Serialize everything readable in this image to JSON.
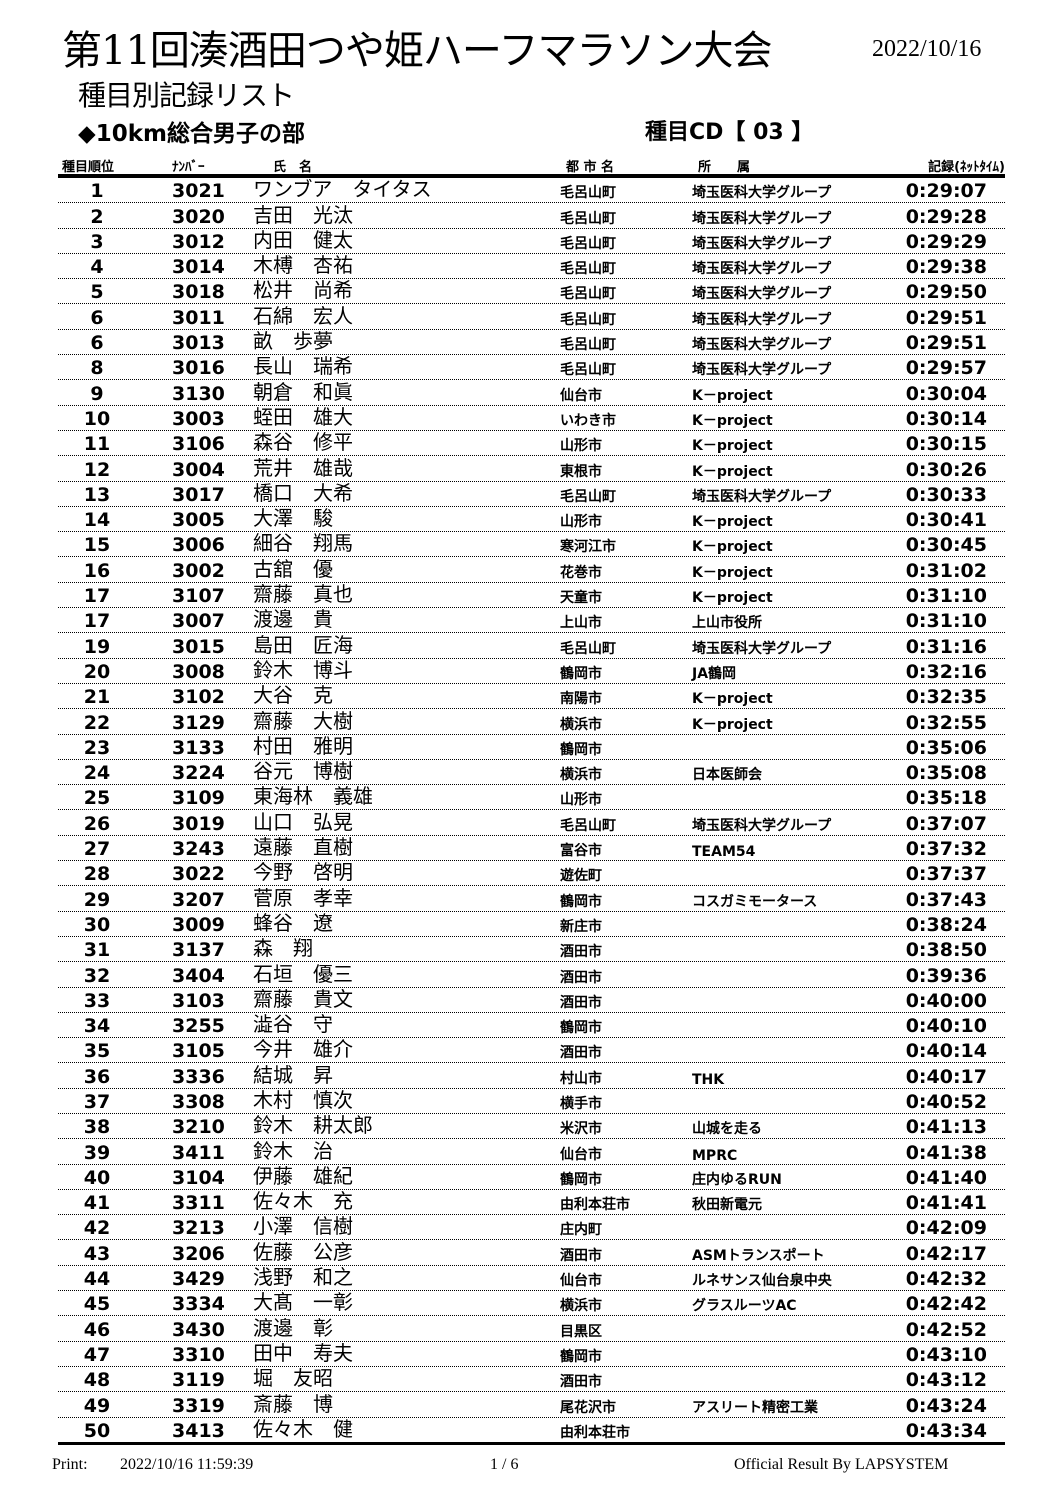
{
  "header": {
    "title": "第11回湊酒田つや姫ハーフマラソン大会",
    "date": "2022/10/16",
    "subtitle": "種目別記録リスト",
    "section": "◆10km総合男子の部",
    "event_code": "種目CD【 03 】"
  },
  "columns": {
    "rank": "種目順位",
    "number": "ﾅﾝﾊﾞｰ",
    "name": "氏　名",
    "city": "都 市 名",
    "affiliation": "所　　属",
    "time": "記録(ﾈｯﾄﾀｲﾑ)"
  },
  "rows": [
    {
      "rank": "1",
      "number": "3021",
      "name": "ワンブア　タイタス",
      "city": "毛呂山町",
      "affiliation": "埼玉医科大学グループ",
      "time": "0:29:07"
    },
    {
      "rank": "2",
      "number": "3020",
      "name": "吉田　光汰",
      "city": "毛呂山町",
      "affiliation": "埼玉医科大学グループ",
      "time": "0:29:28"
    },
    {
      "rank": "3",
      "number": "3012",
      "name": "内田　健太",
      "city": "毛呂山町",
      "affiliation": "埼玉医科大学グループ",
      "time": "0:29:29"
    },
    {
      "rank": "4",
      "number": "3014",
      "name": "木榑　杏祐",
      "city": "毛呂山町",
      "affiliation": "埼玉医科大学グループ",
      "time": "0:29:38"
    },
    {
      "rank": "5",
      "number": "3018",
      "name": "松井　尚希",
      "city": "毛呂山町",
      "affiliation": "埼玉医科大学グループ",
      "time": "0:29:50"
    },
    {
      "rank": "6",
      "number": "3011",
      "name": "石綿　宏人",
      "city": "毛呂山町",
      "affiliation": "埼玉医科大学グループ",
      "time": "0:29:51"
    },
    {
      "rank": "6",
      "number": "3013",
      "name": "畝　歩夢",
      "city": "毛呂山町",
      "affiliation": "埼玉医科大学グループ",
      "time": "0:29:51"
    },
    {
      "rank": "8",
      "number": "3016",
      "name": "長山　瑞希",
      "city": "毛呂山町",
      "affiliation": "埼玉医科大学グループ",
      "time": "0:29:57"
    },
    {
      "rank": "9",
      "number": "3130",
      "name": "朝倉　和眞",
      "city": "仙台市",
      "affiliation": "K－project",
      "time": "0:30:04"
    },
    {
      "rank": "10",
      "number": "3003",
      "name": "蛭田　雄大",
      "city": "いわき市",
      "affiliation": "K－project",
      "time": "0:30:14"
    },
    {
      "rank": "11",
      "number": "3106",
      "name": "森谷　修平",
      "city": "山形市",
      "affiliation": "K－project",
      "time": "0:30:15"
    },
    {
      "rank": "12",
      "number": "3004",
      "name": "荒井　雄哉",
      "city": "東根市",
      "affiliation": "K－project",
      "time": "0:30:26"
    },
    {
      "rank": "13",
      "number": "3017",
      "name": "橋口　大希",
      "city": "毛呂山町",
      "affiliation": "埼玉医科大学グループ",
      "time": "0:30:33"
    },
    {
      "rank": "14",
      "number": "3005",
      "name": "大澤　駿",
      "city": "山形市",
      "affiliation": "K－project",
      "time": "0:30:41"
    },
    {
      "rank": "15",
      "number": "3006",
      "name": "細谷　翔馬",
      "city": "寒河江市",
      "affiliation": "K－project",
      "time": "0:30:45"
    },
    {
      "rank": "16",
      "number": "3002",
      "name": "古舘　優",
      "city": "花巻市",
      "affiliation": "K－project",
      "time": "0:31:02"
    },
    {
      "rank": "17",
      "number": "3107",
      "name": "齋藤　真也",
      "city": "天童市",
      "affiliation": "K－project",
      "time": "0:31:10"
    },
    {
      "rank": "17",
      "number": "3007",
      "name": "渡邊　貴",
      "city": "上山市",
      "affiliation": "上山市役所",
      "time": "0:31:10"
    },
    {
      "rank": "19",
      "number": "3015",
      "name": "島田　匠海",
      "city": "毛呂山町",
      "affiliation": "埼玉医科大学グループ",
      "time": "0:31:16"
    },
    {
      "rank": "20",
      "number": "3008",
      "name": "鈴木　博斗",
      "city": "鶴岡市",
      "affiliation": "JA鶴岡",
      "time": "0:32:16"
    },
    {
      "rank": "21",
      "number": "3102",
      "name": "大谷　克",
      "city": "南陽市",
      "affiliation": "K－project",
      "time": "0:32:35"
    },
    {
      "rank": "22",
      "number": "3129",
      "name": "齋藤　大樹",
      "city": "横浜市",
      "affiliation": "K－project",
      "time": "0:32:55"
    },
    {
      "rank": "23",
      "number": "3133",
      "name": "村田　雅明",
      "city": "鶴岡市",
      "affiliation": "",
      "time": "0:35:06"
    },
    {
      "rank": "24",
      "number": "3224",
      "name": "谷元　博樹",
      "city": "横浜市",
      "affiliation": "日本医師会",
      "time": "0:35:08"
    },
    {
      "rank": "25",
      "number": "3109",
      "name": "東海林　義雄",
      "city": "山形市",
      "affiliation": "",
      "time": "0:35:18"
    },
    {
      "rank": "26",
      "number": "3019",
      "name": "山口　弘晃",
      "city": "毛呂山町",
      "affiliation": "埼玉医科大学グループ",
      "time": "0:37:07"
    },
    {
      "rank": "27",
      "number": "3243",
      "name": "遠藤　直樹",
      "city": "富谷市",
      "affiliation": "TEAM54",
      "time": "0:37:32"
    },
    {
      "rank": "28",
      "number": "3022",
      "name": "今野　啓明",
      "city": "遊佐町",
      "affiliation": "",
      "time": "0:37:37"
    },
    {
      "rank": "29",
      "number": "3207",
      "name": "菅原　孝幸",
      "city": "鶴岡市",
      "affiliation": "コスガミモータース",
      "time": "0:37:43"
    },
    {
      "rank": "30",
      "number": "3009",
      "name": "蜂谷　遼",
      "city": "新庄市",
      "affiliation": "",
      "time": "0:38:24"
    },
    {
      "rank": "31",
      "number": "3137",
      "name": "森　翔",
      "city": "酒田市",
      "affiliation": "",
      "time": "0:38:50"
    },
    {
      "rank": "32",
      "number": "3404",
      "name": "石垣　優三",
      "city": "酒田市",
      "affiliation": "",
      "time": "0:39:36"
    },
    {
      "rank": "33",
      "number": "3103",
      "name": "齋藤　貴文",
      "city": "酒田市",
      "affiliation": "",
      "time": "0:40:00"
    },
    {
      "rank": "34",
      "number": "3255",
      "name": "澁谷　守",
      "city": "鶴岡市",
      "affiliation": "",
      "time": "0:40:10"
    },
    {
      "rank": "35",
      "number": "3105",
      "name": "今井　雄介",
      "city": "酒田市",
      "affiliation": "",
      "time": "0:40:14"
    },
    {
      "rank": "36",
      "number": "3336",
      "name": "結城　昇",
      "city": "村山市",
      "affiliation": "THK",
      "time": "0:40:17"
    },
    {
      "rank": "37",
      "number": "3308",
      "name": "木村　慎次",
      "city": "横手市",
      "affiliation": "",
      "time": "0:40:52"
    },
    {
      "rank": "38",
      "number": "3210",
      "name": "鈴木　耕太郎",
      "city": "米沢市",
      "affiliation": "山城を走る",
      "time": "0:41:13"
    },
    {
      "rank": "39",
      "number": "3411",
      "name": "鈴木　治",
      "city": "仙台市",
      "affiliation": "MPRC",
      "time": "0:41:38"
    },
    {
      "rank": "40",
      "number": "3104",
      "name": "伊藤　雄紀",
      "city": "鶴岡市",
      "affiliation": "庄内ゆるRUN",
      "time": "0:41:40"
    },
    {
      "rank": "41",
      "number": "3311",
      "name": "佐々木　充",
      "city": "由利本荘市",
      "affiliation": "秋田新電元",
      "time": "0:41:41"
    },
    {
      "rank": "42",
      "number": "3213",
      "name": "小澤　信樹",
      "city": "庄内町",
      "affiliation": "",
      "time": "0:42:09"
    },
    {
      "rank": "43",
      "number": "3206",
      "name": "佐藤　公彦",
      "city": "酒田市",
      "affiliation": "ASMトランスポート",
      "time": "0:42:17"
    },
    {
      "rank": "44",
      "number": "3429",
      "name": "浅野　和之",
      "city": "仙台市",
      "affiliation": "ルネサンス仙台泉中央",
      "time": "0:42:32"
    },
    {
      "rank": "45",
      "number": "3334",
      "name": "大髙　一彰",
      "city": "横浜市",
      "affiliation": "グラスルーツAC",
      "time": "0:42:42"
    },
    {
      "rank": "46",
      "number": "3430",
      "name": "渡邊　彰",
      "city": "目黒区",
      "affiliation": "",
      "time": "0:42:52"
    },
    {
      "rank": "47",
      "number": "3310",
      "name": "田中　寿夫",
      "city": "鶴岡市",
      "affiliation": "",
      "time": "0:43:10"
    },
    {
      "rank": "48",
      "number": "3119",
      "name": "堀　友昭",
      "city": "酒田市",
      "affiliation": "",
      "time": "0:43:12"
    },
    {
      "rank": "49",
      "number": "3319",
      "name": "斎藤　博",
      "city": "尾花沢市",
      "affiliation": "アスリート精密工業",
      "time": "0:43:24"
    },
    {
      "rank": "50",
      "number": "3413",
      "name": "佐々木　健",
      "city": "由利本荘市",
      "affiliation": "",
      "time": "0:43:34"
    }
  ],
  "footer": {
    "print_label": "Print:",
    "print_time": "2022/10/16  11:59:39",
    "page": "1 /  6",
    "credit": "Official Result By LAPSYSTEM"
  }
}
